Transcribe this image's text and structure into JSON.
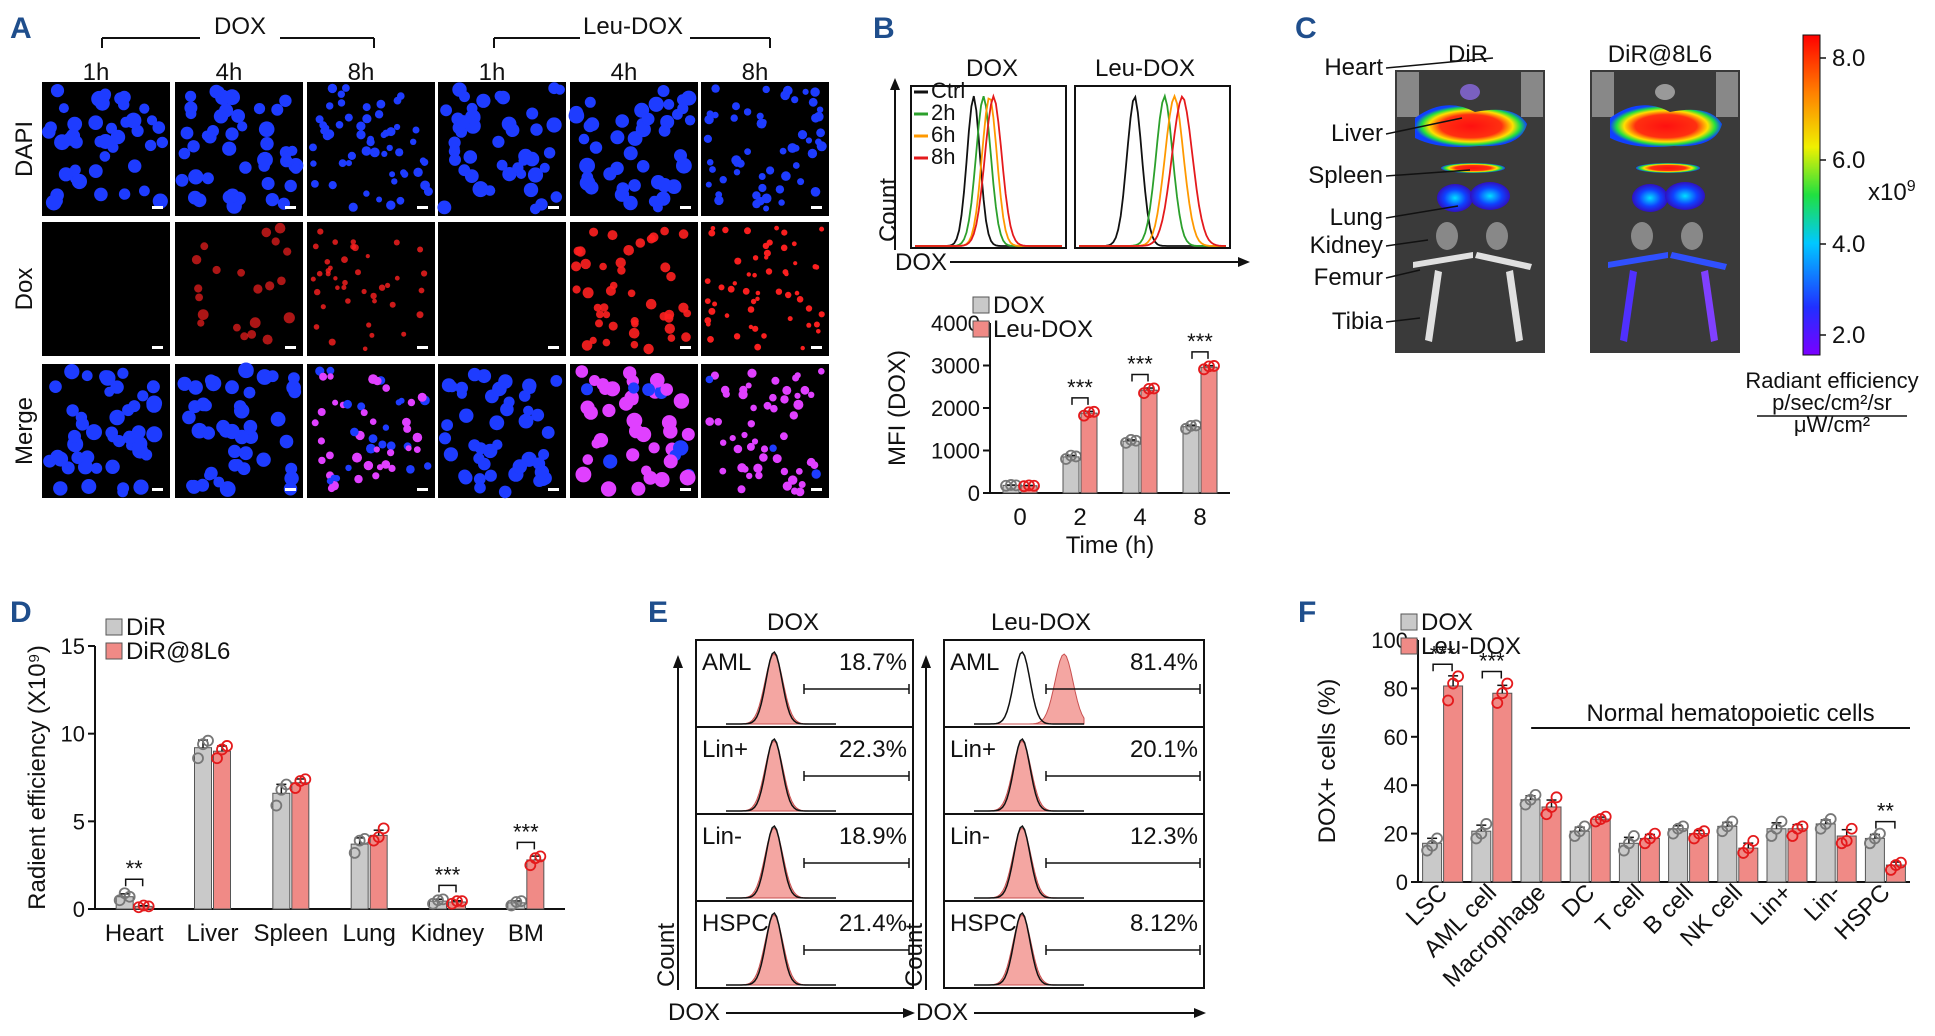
{
  "panels": {
    "a": "A",
    "b": "B",
    "c": "C",
    "d": "D",
    "e": "E",
    "f": "F"
  },
  "colors": {
    "gray": "#c9c9c9",
    "red": "#f08a86",
    "redDot": "#e41a1c",
    "grayDot": "#777777",
    "nucleus": "#1e3cff",
    "dox": "#ff2020",
    "merge": "#e040ff",
    "accent": "#1f4e8c"
  },
  "panelA": {
    "groups": [
      "DOX",
      "Leu-DOX"
    ],
    "times": [
      "1h",
      "4h",
      "8h",
      "1h",
      "4h",
      "8h"
    ],
    "rows": [
      "DAPI",
      "Dox",
      "Merge"
    ]
  },
  "panelB": {
    "flowTitles": [
      "DOX",
      "Leu-DOX"
    ],
    "flowLegend": [
      "Ctrl",
      "2h",
      "6h",
      "8h"
    ],
    "flowLegendColors": [
      "#111111",
      "#2ca02c",
      "#ff9900",
      "#e41a1c"
    ],
    "countLabel": "Count",
    "xLabel": "DOX"
  },
  "panelC": {
    "titles": [
      "DiR",
      "DiR@8L6"
    ],
    "organs": [
      "Heart",
      "Liver",
      "Spleen",
      "Lung",
      "Kidney",
      "Femur",
      "Tibia"
    ],
    "scaleTicks": [
      "8.0",
      "6.0",
      "4.0",
      "2.0"
    ],
    "scaleUnit": "x10",
    "scaleExp": "9",
    "scaleTitle": "Radiant efficiency",
    "scaleNum": "p/sec/cm²/sr",
    "scaleDen": "μW/cm²"
  },
  "panelE": {
    "titles": [
      "DOX",
      "Leu-DOX"
    ],
    "rows": [
      "AML",
      "Lin+",
      "Lin-",
      "HSPC"
    ],
    "dox": [
      "18.7%",
      "22.3%",
      "18.9%",
      "21.4%"
    ],
    "leu": [
      "81.4%",
      "20.1%",
      "12.3%",
      "8.12%"
    ],
    "countLabel": "Count",
    "xLabel": "DOX"
  },
  "chart_data": [
    {
      "id": "B-bar",
      "type": "bar",
      "title": "",
      "xlabel": "Time (h)",
      "ylabel": "MFI (DOX)",
      "categories": [
        "0",
        "2",
        "4",
        "8"
      ],
      "ylim": [
        0,
        4000
      ],
      "yticks": [
        0,
        1000,
        2000,
        3000,
        4000
      ],
      "series": [
        {
          "name": "DOX",
          "values": [
            180,
            850,
            1220,
            1560
          ]
        },
        {
          "name": "Leu-DOX",
          "values": [
            170,
            1880,
            2420,
            2960
          ]
        }
      ],
      "points": [
        [
          [
            170,
            190,
            180
          ],
          [
            160,
            180,
            170
          ]
        ],
        [
          [
            800,
            880,
            860
          ],
          [
            1820,
            1900,
            1910
          ]
        ],
        [
          [
            1180,
            1250,
            1230
          ],
          [
            2350,
            2450,
            2460
          ]
        ],
        [
          [
            1510,
            1580,
            1590
          ],
          [
            2910,
            2980,
            2990
          ]
        ]
      ],
      "annotations": [
        {
          "label": "",
          "pos": 0
        },
        {
          "label": "***",
          "pos": 1
        },
        {
          "label": "***",
          "pos": 2
        },
        {
          "label": "***",
          "pos": 3
        }
      ]
    },
    {
      "id": "D",
      "type": "bar",
      "title": "",
      "xlabel": "",
      "ylabel": "Radient efficiency (X10⁹)",
      "categories": [
        "Heart",
        "Liver",
        "Spleen",
        "Lung",
        "Kidney",
        "BM"
      ],
      "ylim": [
        0,
        15
      ],
      "yticks": [
        0,
        5,
        10,
        15
      ],
      "series": [
        {
          "name": "DiR",
          "values": [
            0.7,
            9.2,
            6.6,
            3.7,
            0.45,
            0.35
          ]
        },
        {
          "name": "DiR@8L6",
          "values": [
            0.15,
            9.0,
            7.2,
            4.2,
            0.4,
            2.8
          ]
        }
      ],
      "points": [
        [
          [
            0.5,
            0.9,
            0.7
          ],
          [
            0.1,
            0.2,
            0.15
          ]
        ],
        [
          [
            8.6,
            9.4,
            9.6
          ],
          [
            8.6,
            9.1,
            9.3
          ]
        ],
        [
          [
            5.9,
            6.8,
            7.1
          ],
          [
            6.9,
            7.3,
            7.4
          ]
        ],
        [
          [
            3.2,
            3.9,
            4.0
          ],
          [
            3.9,
            4.1,
            4.6
          ]
        ],
        [
          [
            0.3,
            0.5,
            0.55
          ],
          [
            0.3,
            0.45,
            0.45
          ]
        ],
        [
          [
            0.2,
            0.4,
            0.45
          ],
          [
            2.5,
            2.9,
            3.0
          ]
        ]
      ],
      "annotations": [
        {
          "label": "**",
          "pos": 0
        },
        {
          "label": "",
          "pos": 1
        },
        {
          "label": "",
          "pos": 2
        },
        {
          "label": "",
          "pos": 3
        },
        {
          "label": "***",
          "pos": 4
        },
        {
          "label": "***",
          "pos": 5
        }
      ]
    },
    {
      "id": "F",
      "type": "bar",
      "title": "",
      "xlabel": "",
      "ylabel": "DOX+ cells (%)",
      "categories": [
        "LSC",
        "AML cell",
        "Macrophage",
        "DC",
        "T cell",
        "B cell",
        "NK cell",
        "Lin+",
        "Lin-",
        "HSPC"
      ],
      "ylim": [
        0,
        100
      ],
      "yticks": [
        0,
        20,
        40,
        60,
        80,
        100
      ],
      "series": [
        {
          "name": "DOX",
          "values": [
            16,
            21,
            34,
            21,
            16,
            22,
            23,
            22,
            24,
            18
          ]
        },
        {
          "name": "Leu-DOX",
          "values": [
            81,
            78,
            31,
            26,
            18,
            20,
            14,
            22,
            19,
            7
          ]
        }
      ],
      "points": [
        [
          [
            13,
            15,
            18
          ],
          [
            75,
            82,
            85
          ]
        ],
        [
          [
            18,
            20,
            24
          ],
          [
            74,
            78,
            82
          ]
        ],
        [
          [
            32,
            34,
            36
          ],
          [
            28,
            31,
            35
          ]
        ],
        [
          [
            19,
            21,
            23
          ],
          [
            25,
            26,
            27
          ]
        ],
        [
          [
            13,
            16,
            19
          ],
          [
            16,
            18,
            20
          ]
        ],
        [
          [
            20,
            22,
            23
          ],
          [
            18,
            20,
            21
          ]
        ],
        [
          [
            21,
            23,
            25
          ],
          [
            12,
            14,
            17
          ]
        ],
        [
          [
            19,
            22,
            25
          ],
          [
            19,
            22,
            23
          ]
        ],
        [
          [
            22,
            24,
            26
          ],
          [
            16,
            17,
            22
          ]
        ],
        [
          [
            16,
            18,
            20
          ],
          [
            5,
            7,
            8
          ]
        ]
      ],
      "annotations": [
        {
          "label": "***",
          "pos": 0
        },
        {
          "label": "***",
          "pos": 1
        },
        {
          "label": "",
          "pos": 2
        },
        {
          "label": "",
          "pos": 3
        },
        {
          "label": "",
          "pos": 4
        },
        {
          "label": "",
          "pos": 5
        },
        {
          "label": "",
          "pos": 6
        },
        {
          "label": "",
          "pos": 7
        },
        {
          "label": "",
          "pos": 8
        },
        {
          "label": "**",
          "pos": 9
        }
      ],
      "bracketLabel": "Normal hematopoietic cells"
    }
  ]
}
